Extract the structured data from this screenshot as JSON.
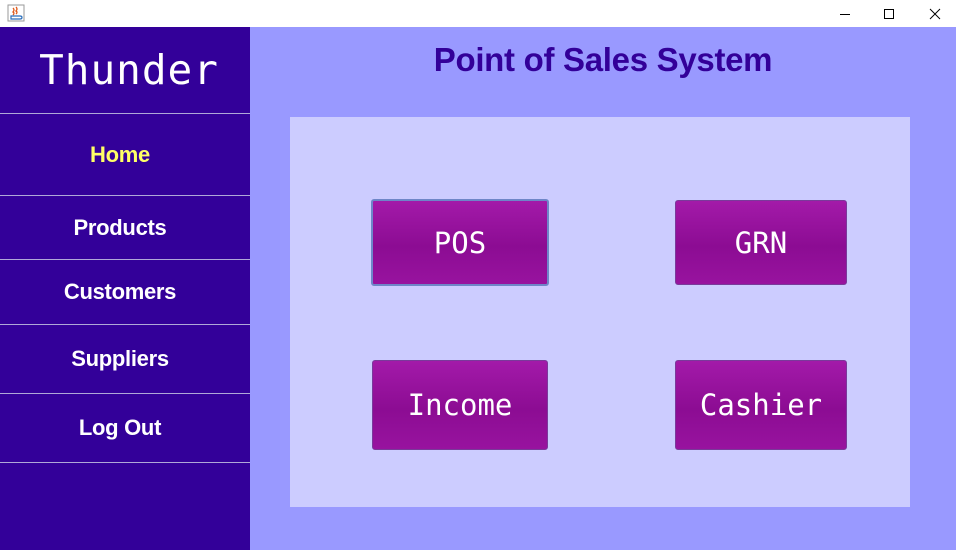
{
  "window": {
    "icon": "java-icon",
    "controls": {
      "minimize": "minimize-icon",
      "maximize": "maximize-icon",
      "close": "close-icon"
    }
  },
  "sidebar": {
    "brand": "Thunder",
    "items": [
      {
        "label": "Home",
        "active": true
      },
      {
        "label": "Products",
        "active": false
      },
      {
        "label": "Customers",
        "active": false
      },
      {
        "label": "Suppliers",
        "active": false
      },
      {
        "label": "Log Out",
        "active": false
      }
    ]
  },
  "main": {
    "title": "Point of Sales System",
    "tiles": [
      {
        "label": "POS"
      },
      {
        "label": "GRN"
      },
      {
        "label": "Income"
      },
      {
        "label": "Cashier"
      }
    ]
  },
  "colors": {
    "sidebar_bg": "#330099",
    "main_bg": "#9999ff",
    "panel_bg": "#ccccff",
    "title_text": "#330099",
    "active_nav": "#ffff66",
    "tile_bg": "#99119f"
  }
}
